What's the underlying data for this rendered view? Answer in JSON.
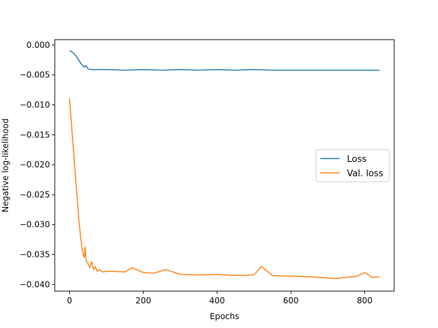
{
  "chart_data": {
    "type": "line",
    "title": "",
    "xlabel": "Epochs",
    "ylabel": "Negative log-likelihood",
    "xlim": [
      -40,
      880
    ],
    "ylim": [
      -0.0411,
      0.0009
    ],
    "xticks": [
      0,
      200,
      400,
      600,
      800
    ],
    "xtick_labels": [
      "0",
      "200",
      "400",
      "600",
      "800"
    ],
    "yticks": [
      0.0,
      -0.005,
      -0.01,
      -0.015,
      -0.02,
      -0.025,
      -0.03,
      -0.035,
      -0.04
    ],
    "ytick_labels": [
      "0.000",
      "−0.005",
      "−0.010",
      "−0.015",
      "−0.020",
      "−0.025",
      "−0.030",
      "−0.035",
      "−0.040"
    ],
    "grid": false,
    "legend_position": "center-right",
    "series": [
      {
        "name": "Loss",
        "color": "#1f77b4",
        "x": [
          0,
          10,
          20,
          30,
          40,
          45,
          50,
          60,
          80,
          100,
          150,
          200,
          250,
          300,
          350,
          400,
          450,
          500,
          550,
          600,
          650,
          700,
          750,
          800,
          840
        ],
        "y": [
          -0.0009,
          -0.0013,
          -0.002,
          -0.003,
          -0.0037,
          -0.0034,
          -0.004,
          -0.0041,
          -0.0041,
          -0.0041,
          -0.0042,
          -0.0041,
          -0.0042,
          -0.0041,
          -0.0042,
          -0.0041,
          -0.0042,
          -0.0041,
          -0.0042,
          -0.0042,
          -0.0042,
          -0.0042,
          -0.0042,
          -0.0042,
          -0.0042
        ]
      },
      {
        "name": "Val. loss",
        "color": "#ff7f0e",
        "x": [
          0,
          5,
          10,
          15,
          20,
          25,
          30,
          35,
          40,
          42,
          45,
          50,
          55,
          60,
          65,
          70,
          75,
          80,
          90,
          100,
          120,
          150,
          170,
          200,
          230,
          260,
          300,
          350,
          400,
          450,
          500,
          520,
          550,
          600,
          650,
          700,
          720,
          750,
          780,
          800,
          820,
          840
        ],
        "y": [
          -0.0089,
          -0.013,
          -0.017,
          -0.021,
          -0.025,
          -0.029,
          -0.032,
          -0.0345,
          -0.0355,
          -0.0337,
          -0.036,
          -0.0365,
          -0.0372,
          -0.0362,
          -0.0375,
          -0.037,
          -0.0378,
          -0.0375,
          -0.0379,
          -0.0378,
          -0.0378,
          -0.0379,
          -0.0372,
          -0.038,
          -0.0381,
          -0.0375,
          -0.0383,
          -0.0384,
          -0.0383,
          -0.0385,
          -0.0384,
          -0.037,
          -0.0385,
          -0.0386,
          -0.0387,
          -0.0389,
          -0.039,
          -0.0388,
          -0.0386,
          -0.038,
          -0.0388,
          -0.0387
        ]
      }
    ]
  }
}
